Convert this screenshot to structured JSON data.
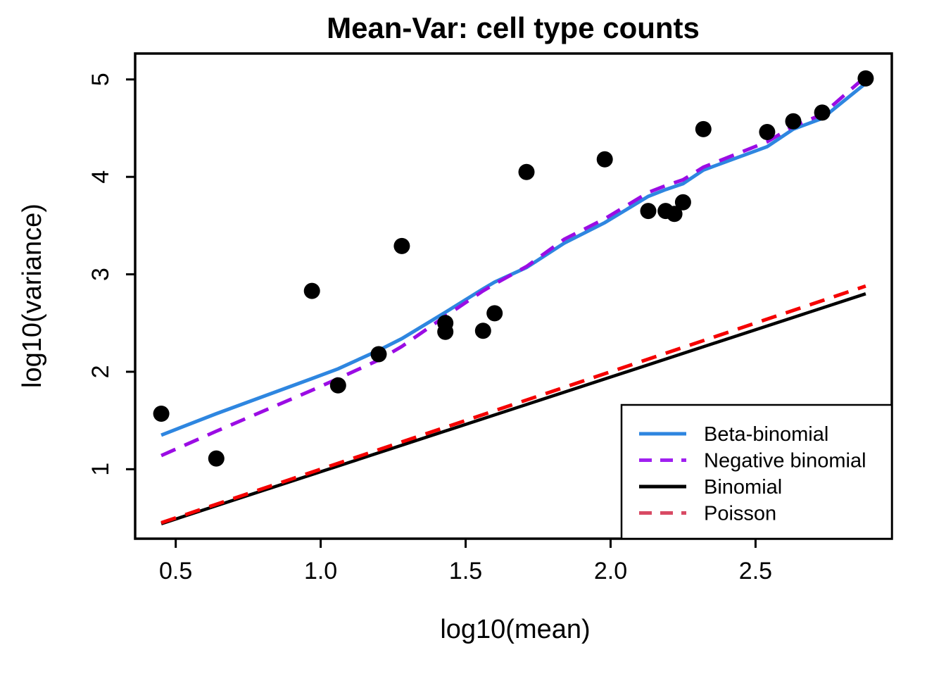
{
  "chart_data": {
    "type": "scatter",
    "title": "Mean-Var: cell type counts",
    "xlabel": "log10(mean)",
    "ylabel": "log10(variance)",
    "xlim": [
      0.36,
      2.97
    ],
    "ylim": [
      0.287,
      5.266
    ],
    "xticks": [
      "0.5",
      "1.0",
      "1.5",
      "2.0",
      "2.5"
    ],
    "xtick_values": [
      0.5,
      1.0,
      1.5,
      2.0,
      2.5
    ],
    "yticks": [
      "1",
      "2",
      "3",
      "4",
      "5"
    ],
    "ytick_values": [
      1,
      2,
      3,
      4,
      5
    ],
    "grid": false,
    "point_color": "#000000",
    "points": [
      [
        0.45,
        1.57
      ],
      [
        0.64,
        1.11
      ],
      [
        0.97,
        2.83
      ],
      [
        1.06,
        1.86
      ],
      [
        1.2,
        2.18
      ],
      [
        1.28,
        3.29
      ],
      [
        1.43,
        2.5
      ],
      [
        1.43,
        2.41
      ],
      [
        1.56,
        2.42
      ],
      [
        1.6,
        2.6
      ],
      [
        1.71,
        4.05
      ],
      [
        1.98,
        4.18
      ],
      [
        2.13,
        3.65
      ],
      [
        2.19,
        3.65
      ],
      [
        2.22,
        3.62
      ],
      [
        2.25,
        3.74
      ],
      [
        2.32,
        4.49
      ],
      [
        2.54,
        4.46
      ],
      [
        2.63,
        4.57
      ],
      [
        2.73,
        4.66
      ],
      [
        2.88,
        5.01
      ]
    ],
    "series": [
      {
        "name": "Beta-binomial",
        "color": "#2E86E0",
        "style": "solid",
        "width": 5,
        "points": [
          [
            0.45,
            1.35
          ],
          [
            0.64,
            1.57
          ],
          [
            0.97,
            1.93
          ],
          [
            1.06,
            2.03
          ],
          [
            1.2,
            2.22
          ],
          [
            1.28,
            2.34
          ],
          [
            1.43,
            2.61
          ],
          [
            1.56,
            2.85
          ],
          [
            1.6,
            2.92
          ],
          [
            1.71,
            3.07
          ],
          [
            1.84,
            3.32
          ],
          [
            1.98,
            3.53
          ],
          [
            2.13,
            3.8
          ],
          [
            2.19,
            3.87
          ],
          [
            2.25,
            3.93
          ],
          [
            2.32,
            4.07
          ],
          [
            2.54,
            4.31
          ],
          [
            2.63,
            4.49
          ],
          [
            2.73,
            4.6
          ],
          [
            2.88,
            4.96
          ]
        ]
      },
      {
        "name": "Negative binomial",
        "color": "#9B0CE4",
        "style": "dashed",
        "width": 5,
        "points": [
          [
            0.45,
            1.14
          ],
          [
            0.64,
            1.39
          ],
          [
            0.97,
            1.81
          ],
          [
            1.06,
            1.93
          ],
          [
            1.2,
            2.12
          ],
          [
            1.28,
            2.26
          ],
          [
            1.43,
            2.57
          ],
          [
            1.56,
            2.83
          ],
          [
            1.6,
            2.9
          ],
          [
            1.71,
            3.08
          ],
          [
            1.84,
            3.36
          ],
          [
            1.98,
            3.57
          ],
          [
            2.13,
            3.84
          ],
          [
            2.19,
            3.91
          ],
          [
            2.25,
            3.97
          ],
          [
            2.32,
            4.1
          ],
          [
            2.54,
            4.36
          ],
          [
            2.63,
            4.52
          ],
          [
            2.73,
            4.64
          ],
          [
            2.88,
            5.03
          ]
        ]
      },
      {
        "name": "Binomial",
        "color": "#000000",
        "style": "solid",
        "width": 4.5,
        "points": [
          [
            0.45,
            0.44
          ],
          [
            2.88,
            2.8
          ]
        ]
      },
      {
        "name": "Poisson",
        "color": "#F50000",
        "style": "dashed",
        "width": 5,
        "points": [
          [
            0.45,
            0.45
          ],
          [
            2.88,
            2.88
          ]
        ]
      }
    ],
    "legend": {
      "position": "bottom-right",
      "entries": [
        {
          "label": "Beta-binomial",
          "swatch_color": "#2E86E0",
          "style": "solid"
        },
        {
          "label": "Negative binomial",
          "swatch_color": "#A020F0",
          "style": "dashed"
        },
        {
          "label": "Binomial",
          "swatch_color": "#000000",
          "style": "solid"
        },
        {
          "label": "Poisson",
          "swatch_color": "#D84A64",
          "style": "dashed"
        }
      ]
    }
  }
}
